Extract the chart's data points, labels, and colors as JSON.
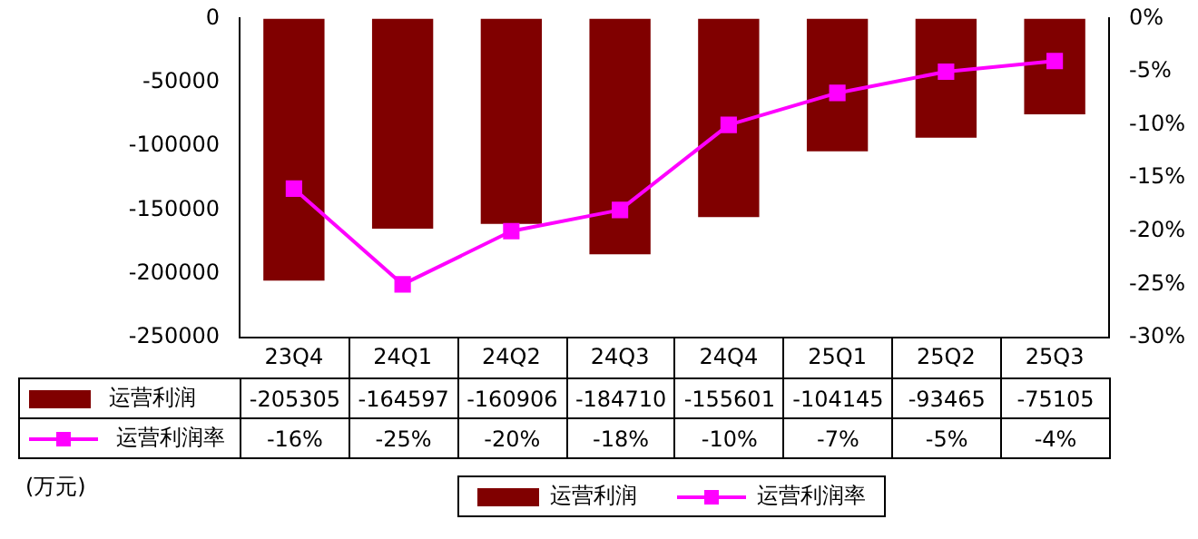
{
  "chart_data": {
    "type": "bar",
    "categories": [
      "23Q4",
      "24Q1",
      "24Q2",
      "24Q3",
      "24Q4",
      "25Q1",
      "25Q2",
      "25Q3"
    ],
    "series": [
      {
        "name": "运营利润",
        "type": "bar",
        "color": "#800000",
        "values": [
          -205305,
          -164597,
          -160906,
          -184710,
          -155601,
          -104145,
          -93465,
          -75105
        ],
        "value_labels": [
          "-205305",
          "-164597",
          "-160906",
          "-184710",
          "-155601",
          "-104145",
          "-93465",
          "-75105"
        ]
      },
      {
        "name": "运营利润率",
        "type": "line",
        "axis": "y2",
        "color": "#ff00ff",
        "marker": "square",
        "values": [
          -16,
          -25,
          -20,
          -18,
          -10,
          -7,
          -5,
          -4
        ],
        "value_labels": [
          "-16%",
          "-25%",
          "-20%",
          "-18%",
          "-10%",
          "-7%",
          "-5%",
          "-4%"
        ]
      }
    ],
    "ylim": [
      -250000,
      0
    ],
    "yticks": [
      -250000,
      -200000,
      -150000,
      -100000,
      -50000,
      0
    ],
    "y2lim": [
      -30,
      0
    ],
    "y2ticks": [
      {
        "value": -30,
        "label": "-30%"
      },
      {
        "value": -25,
        "label": "-25%"
      },
      {
        "value": -20,
        "label": "-20%"
      },
      {
        "value": -15,
        "label": "-15%"
      },
      {
        "value": -10,
        "label": "-10%"
      },
      {
        "value": -5,
        "label": "-5%"
      },
      {
        "value": 0,
        "label": "0%"
      }
    ],
    "legend": "bottom",
    "grid": false,
    "annotations": [
      "(万元)"
    ]
  }
}
